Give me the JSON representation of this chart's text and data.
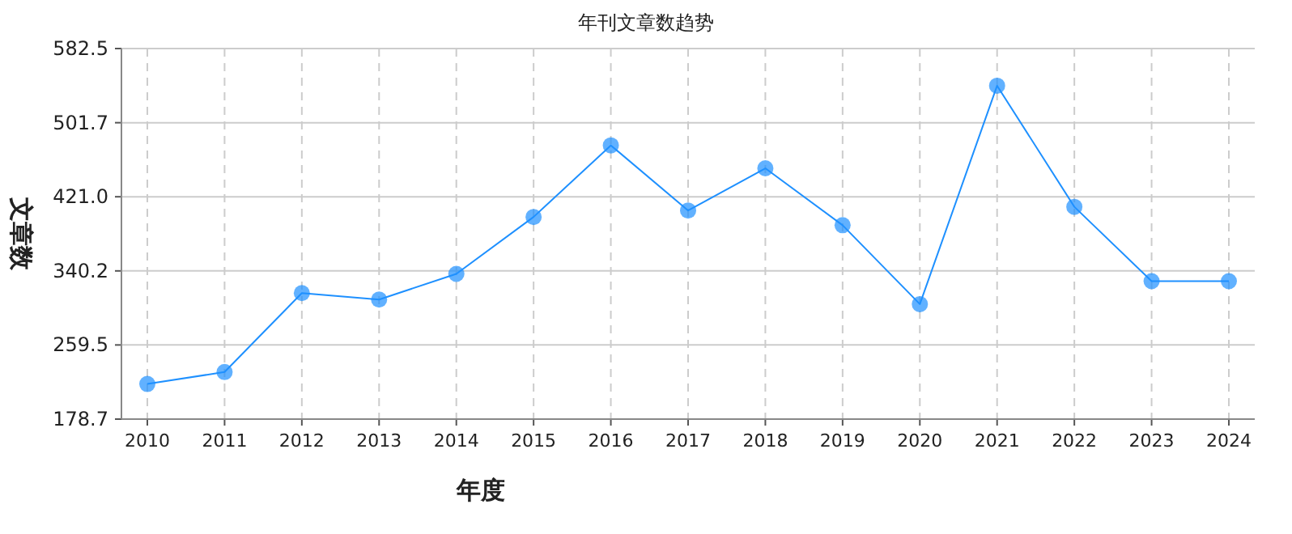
{
  "chart_data": {
    "type": "line",
    "title": "年刊文章数趋势",
    "xlabel": "年度",
    "ylabel": "文章数",
    "categories": [
      "2010",
      "2011",
      "2012",
      "2013",
      "2014",
      "2015",
      "2016",
      "2017",
      "2018",
      "2019",
      "2020",
      "2021",
      "2022",
      "2023",
      "2024"
    ],
    "series": [
      {
        "color": "#1e90ff",
        "values": [
          217,
          230,
          316,
          309,
          337,
          399,
          477,
          406,
          452,
          390,
          304,
          542,
          410,
          329,
          329
        ]
      }
    ],
    "ylim": [
      178.7,
      582.5
    ],
    "yticks": [
      178.7,
      259.5,
      340.2,
      {
        "value": 421.0,
        "label": "421.0"
      },
      501.7,
      582.5
    ],
    "grid": true,
    "marker": "circle",
    "line_style": "solid"
  }
}
